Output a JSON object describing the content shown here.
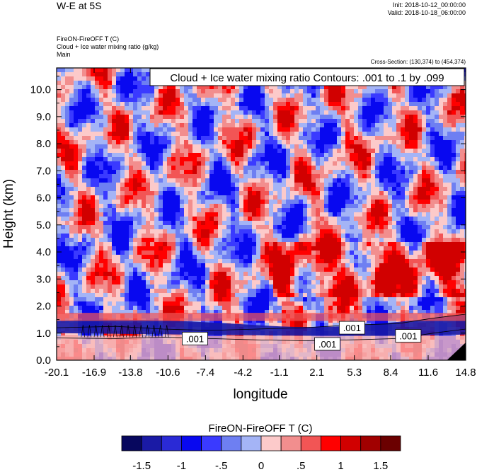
{
  "header": {
    "title": "W-E at 5S",
    "init": "Init: 2018-10-12_00:00:00",
    "valid": "Valid: 2018-10-18_06:00:00",
    "subtitle_lines": [
      "FireON-FireOFF T   (C)",
      "Cloud + Ice water mixing ratio   (g/kg)",
      "Main"
    ],
    "cross_section": "Cross-Section: (130,374) to (454,374)"
  },
  "chart_data": {
    "type": "heatmap",
    "title": "W-E at 5S",
    "contour_label": "Cloud + Ice water mixing ratio Contours: .001 to .1 by .099",
    "xlabel": "longitude",
    "ylabel": "Height (km)",
    "x_ticks": [
      "-20.1",
      "-16.9",
      "-13.8",
      "-10.6",
      "-7.4",
      "-4.2",
      "-1.1",
      "2.1",
      "5.3",
      "8.4",
      "11.6",
      "14.8"
    ],
    "y_ticks": [
      "0.0",
      "1.0",
      "2.0",
      "3.0",
      "4.0",
      "5.0",
      "6.0",
      "7.0",
      "8.0",
      "9.0",
      "10.0"
    ],
    "xlim": [
      -20.1,
      14.8
    ],
    "ylim": [
      0,
      10.8
    ],
    "contour_values": [
      {
        "x": -8.3,
        "y": 0.8,
        "label": ".001"
      },
      {
        "x": 3.0,
        "y": 0.6,
        "label": ".001"
      },
      {
        "x": 5.1,
        "y": 1.2,
        "label": ".001"
      },
      {
        "x": 9.9,
        "y": 0.9,
        "label": ".001"
      }
    ],
    "colorbar": {
      "label": "FireON-FireOFF T  (C)",
      "levels": [
        "-1.5",
        "-1",
        "-.5",
        "0",
        ".5",
        "1",
        "1.5"
      ],
      "colors": [
        "#07075e",
        "#1a1aa5",
        "#2a2ad6",
        "#0808f0",
        "#3a3aff",
        "#6e7ff2",
        "#a4b4f6",
        "#fccaca",
        "#f28e8e",
        "#f25555",
        "#ff0000",
        "#d10000",
        "#a10000",
        "#6b0000"
      ]
    }
  }
}
